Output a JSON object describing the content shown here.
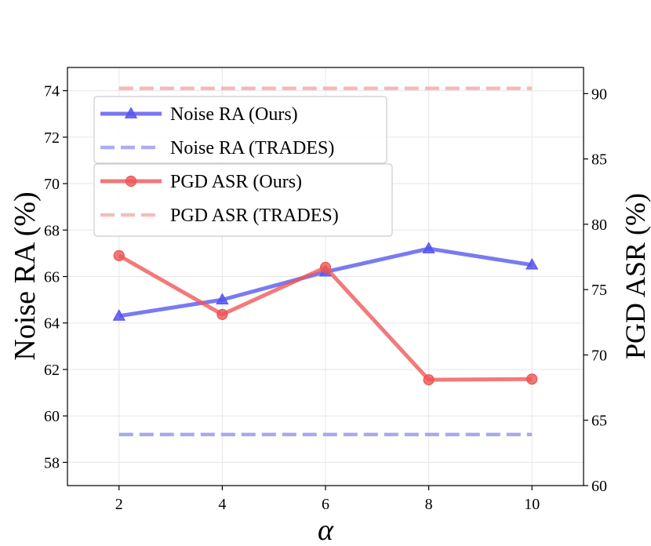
{
  "chart_data": {
    "type": "line",
    "x": [
      2,
      4,
      6,
      8,
      10
    ],
    "xlabel": "α",
    "xlim": [
      1,
      11
    ],
    "xticks": [
      2,
      4,
      6,
      8,
      10
    ],
    "ylabel_left": "Noise RA (%)",
    "ylim_left": [
      57,
      75
    ],
    "yticks_left": [
      58,
      60,
      62,
      64,
      66,
      68,
      70,
      72,
      74
    ],
    "ylabel_right": "PGD ASR (%)",
    "ylim_right": [
      60,
      92
    ],
    "yticks_right": [
      60,
      65,
      70,
      75,
      80,
      85,
      90
    ],
    "grid": true,
    "series": [
      {
        "name": "Noise RA (Ours)",
        "axis": "left",
        "style": "solid",
        "marker": "triangle",
        "color": "#5555ee",
        "values": [
          64.3,
          65.0,
          66.2,
          67.2,
          66.5
        ]
      },
      {
        "name": "Noise RA (TRADES)",
        "axis": "left",
        "style": "dashed",
        "marker": "none",
        "color": "#9999ee",
        "values": [
          59.2,
          59.2,
          59.2,
          59.2,
          59.2
        ]
      },
      {
        "name": "PGD ASR (Ours)",
        "axis": "right",
        "style": "solid",
        "marker": "circle",
        "color": "#ee5555",
        "values": [
          77.6,
          73.1,
          76.7,
          68.1,
          68.15
        ]
      },
      {
        "name": "PGD ASR (TRADES)",
        "axis": "right",
        "style": "dashed",
        "marker": "none",
        "color": "#f4aaaa",
        "values": [
          90.4,
          90.4,
          90.4,
          90.4,
          90.4
        ]
      }
    ],
    "legends": [
      {
        "placement": "upper-left",
        "entries": [
          "Noise RA (Ours)",
          "Noise RA (TRADES)"
        ]
      },
      {
        "placement": "upper-left-below",
        "entries": [
          "PGD ASR (Ours)",
          "PGD ASR (TRADES)"
        ]
      }
    ]
  }
}
